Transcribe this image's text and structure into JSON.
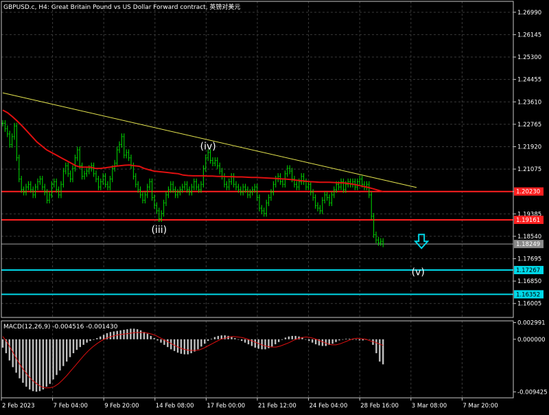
{
  "header": {
    "title": "GBPUSD.c, H4:  Great Britain Pound vs US Dollar Forward contract, 英镑对美元"
  },
  "colors": {
    "background": "#000000",
    "grid": "#3a3a3a",
    "frame": "#c8c8c8",
    "axis_text": "#ffffff",
    "candle": "#00e000",
    "ma": "#e01010",
    "trendline": "#e8e850",
    "resistance": "#ff2020",
    "support": "#00d8e8",
    "current_price": "#a0a0a0",
    "macd_hist": "#c0c0c0",
    "macd_signal": "#e01010",
    "arrow": "#00d8e8"
  },
  "chart_data": [
    {
      "type": "line",
      "name": "price-panel",
      "title": "GBPUSD.c, H4:  Great Britain Pound vs US Dollar Forward contract, 英镑对美元",
      "ylim": [
        1.1548,
        1.274
      ],
      "y_ticks": [
        "1.26990",
        "1.26145",
        "1.25300",
        "1.24455",
        "1.23610",
        "1.22765",
        "1.21920",
        "1.21075",
        "1.20230",
        "1.19385",
        "1.18540",
        "1.17695",
        "1.16850",
        "1.16005"
      ],
      "x_labels": [
        "2 Feb 2023",
        "7 Feb 04:00",
        "9 Feb 20:00",
        "14 Feb 08:00",
        "17 Feb 00:00",
        "21 Feb 12:00",
        "24 Feb 04:00",
        "28 Feb 16:00",
        "3 Mar 08:00",
        "7 Mar 20:00"
      ],
      "close": [
        1.228,
        1.226,
        1.224,
        1.22,
        1.223,
        1.227,
        1.215,
        1.207,
        1.203,
        1.202,
        1.204,
        1.205,
        1.203,
        1.201,
        1.204,
        1.206,
        1.207,
        1.204,
        1.202,
        1.199,
        1.201,
        1.205,
        1.206,
        1.203,
        1.201,
        1.205,
        1.21,
        1.212,
        1.209,
        1.207,
        1.211,
        1.215,
        1.218,
        1.212,
        1.208,
        1.209,
        1.21,
        1.211,
        1.212,
        1.209,
        1.207,
        1.204,
        1.206,
        1.208,
        1.205,
        1.204,
        1.207,
        1.211,
        1.213,
        1.218,
        1.22,
        1.223,
        1.216,
        1.217,
        1.215,
        1.212,
        1.208,
        1.205,
        1.203,
        1.201,
        1.199,
        1.201,
        1.204,
        1.206,
        1.2,
        1.197,
        1.195,
        1.192,
        1.194,
        1.198,
        1.201,
        1.203,
        1.205,
        1.203,
        1.201,
        1.202,
        1.203,
        1.204,
        1.205,
        1.203,
        1.202,
        1.204,
        1.206,
        1.204,
        1.203,
        1.205,
        1.211,
        1.215,
        1.217,
        1.214,
        1.213,
        1.214,
        1.212,
        1.21,
        1.208,
        1.205,
        1.204,
        1.206,
        1.208,
        1.205,
        1.204,
        1.203,
        1.202,
        1.204,
        1.203,
        1.201,
        1.202,
        1.203,
        1.204,
        1.2,
        1.196,
        1.195,
        1.194,
        1.198,
        1.2,
        1.202,
        1.205,
        1.207,
        1.208,
        1.206,
        1.205,
        1.209,
        1.211,
        1.21,
        1.207,
        1.205,
        1.204,
        1.206,
        1.208,
        1.206,
        1.204,
        1.205,
        1.202,
        1.2,
        1.197,
        1.196,
        1.195,
        1.199,
        1.201,
        1.2,
        1.198,
        1.201,
        1.203,
        1.205,
        1.204,
        1.206,
        1.203,
        1.205,
        1.206,
        1.205,
        1.206,
        1.204,
        1.206,
        1.207,
        1.205,
        1.204,
        1.205,
        1.201,
        1.193,
        1.186,
        1.184,
        1.183,
        1.1835,
        1.1825
      ],
      "series": [
        {
          "name": "",
          "role": "moving-average",
          "values": [
            1.233,
            1.232,
            1.2305,
            1.2288,
            1.227,
            1.225,
            1.223,
            1.221,
            1.2195,
            1.218,
            1.217,
            1.216,
            1.215,
            1.214,
            1.213,
            1.212,
            1.2115,
            1.2115,
            1.2115,
            1.211,
            1.211,
            1.2112,
            1.2115,
            1.2118,
            1.212,
            1.2122,
            1.2123,
            1.212,
            1.2118,
            1.211,
            1.2105,
            1.21,
            1.2098,
            1.2096,
            1.2094,
            1.2092,
            1.209,
            1.2085,
            1.2083,
            1.2082,
            1.2082,
            1.2082,
            1.2081,
            1.2081,
            1.208,
            1.208,
            1.2079,
            1.2079,
            1.2078,
            1.2078,
            1.2077,
            1.2076,
            1.2076,
            1.2075,
            1.2074,
            1.2073,
            1.2072,
            1.2071,
            1.207,
            1.2068,
            1.2066,
            1.2064,
            1.2062,
            1.206,
            1.2059,
            1.2058,
            1.2058,
            1.2058,
            1.2057,
            1.2056,
            1.2055,
            1.2053,
            1.205,
            1.2046,
            1.2042,
            1.2038,
            1.2033,
            1.2028,
            1.2022
          ]
        }
      ],
      "horizontal_lines": [
        {
          "label": "1.20230",
          "value": 1.2023,
          "role": "resistance",
          "tag_color": "#ff2020"
        },
        {
          "label": "1.19161",
          "value": 1.19161,
          "role": "resistance",
          "tag_color": "#ff2020"
        },
        {
          "label": "1.18249",
          "value": 1.18249,
          "role": "current-price",
          "tag_color": "#8a8a8a"
        },
        {
          "label": "1.17267",
          "value": 1.17267,
          "role": "support",
          "tag_color": "#00d8e8"
        },
        {
          "label": "1.16352",
          "value": 1.16352,
          "role": "support",
          "tag_color": "#00d8e8"
        }
      ],
      "trendline": {
        "from": {
          "bar": 0,
          "value": 1.2395
        },
        "to": {
          "bar": 170,
          "value": 1.205
        }
      },
      "annotations": [
        {
          "text": "(iii)",
          "bar": 67,
          "value": 1.188
        },
        {
          "text": "(iv)",
          "bar": 88,
          "value": 1.2195
        },
        {
          "text": "(v)",
          "bar": 178,
          "value": 1.172
        }
      ],
      "arrow": {
        "direction": "down",
        "bar": 173,
        "value": 1.1835
      }
    },
    {
      "type": "bar",
      "name": "macd-panel",
      "title": "MACD(12,26,9) -0.004516 -0.001430",
      "ylim": [
        -0.0105,
        0.0033
      ],
      "y_ticks": [
        "0.002991",
        "0.000000",
        "-0.009425"
      ],
      "values": [
        -0.0015,
        -0.0025,
        -0.0038,
        -0.005,
        -0.006,
        -0.007,
        -0.0078,
        -0.0085,
        -0.009,
        -0.0093,
        -0.0094,
        -0.0093,
        -0.009,
        -0.0085,
        -0.008,
        -0.0072,
        -0.0064,
        -0.0056,
        -0.0048,
        -0.004,
        -0.0032,
        -0.0025,
        -0.0019,
        -0.0014,
        -0.001,
        -0.0006,
        -0.0003,
        -0.0001,
        0.0002,
        0.0005,
        0.0008,
        0.0011,
        0.0013,
        0.0014,
        0.0015,
        0.0016,
        0.0017,
        0.0018,
        0.0019,
        0.0019,
        0.0018,
        0.0016,
        0.0013,
        0.001,
        0.0006,
        0.0002,
        -0.0002,
        -0.0006,
        -0.001,
        -0.0014,
        -0.0018,
        -0.0021,
        -0.0024,
        -0.0026,
        -0.0027,
        -0.0027,
        -0.0025,
        -0.0022,
        -0.0018,
        -0.0013,
        -0.0008,
        -0.0003,
        0.0001,
        0.0004,
        0.0006,
        0.0007,
        0.0007,
        0.0006,
        0.0004,
        0.0002,
        0.0,
        -0.0003,
        -0.0006,
        -0.0009,
        -0.0012,
        -0.0015,
        -0.0017,
        -0.0018,
        -0.0018,
        -0.0016,
        -0.0013,
        -0.0009,
        -0.0005,
        -0.0001,
        0.0003,
        0.0005,
        0.0006,
        0.0006,
        0.0005,
        0.0003,
        0.0,
        -0.0003,
        -0.0006,
        -0.0009,
        -0.0011,
        -0.0012,
        -0.0012,
        -0.001,
        -0.0008,
        -0.0005,
        -0.0002,
        0.0,
        0.0001,
        0.0001,
        0.0,
        -0.0001,
        -0.0002,
        -0.0002,
        -0.0001,
        0.0,
        -0.001,
        -0.0025,
        -0.004,
        -0.0045
      ],
      "series": [
        {
          "name": "",
          "role": "signal",
          "values": [
            0.0005,
            -0.0005,
            -0.0018,
            -0.0032,
            -0.0045,
            -0.0056,
            -0.0066,
            -0.0074,
            -0.008,
            -0.0085,
            -0.0087,
            -0.0087,
            -0.0085,
            -0.008,
            -0.0073,
            -0.0065,
            -0.0056,
            -0.0047,
            -0.0038,
            -0.0029,
            -0.0021,
            -0.0014,
            -0.0008,
            -0.0003,
            0.0001,
            0.0004,
            0.0006,
            0.0008,
            0.0009,
            0.001,
            0.0011,
            0.0012,
            0.0012,
            0.0012,
            0.0011,
            0.0009,
            0.0006,
            0.0002,
            -0.0002,
            -0.0006,
            -0.001,
            -0.0014,
            -0.0017,
            -0.0019,
            -0.002,
            -0.002,
            -0.0019,
            -0.0016,
            -0.0012,
            -0.0008,
            -0.0004,
            0.0,
            0.0002,
            0.0004,
            0.0005,
            0.0004,
            0.0003,
            0.0001,
            -0.0002,
            -0.0005,
            -0.0008,
            -0.0011,
            -0.0013,
            -0.0014,
            -0.0014,
            -0.0012,
            -0.0009,
            -0.0006,
            -0.0002,
            0.0001,
            0.0003,
            0.0004,
            0.0003,
            0.0001,
            -0.0002,
            -0.0005,
            -0.0008,
            -0.001,
            -0.001,
            -0.0008,
            -0.0005,
            -0.0002,
            0.0001,
            0.0002,
            0.0001,
            0.0,
            -0.0003,
            -0.0005,
            -0.0008,
            -0.0011
          ]
        }
      ]
    }
  ]
}
